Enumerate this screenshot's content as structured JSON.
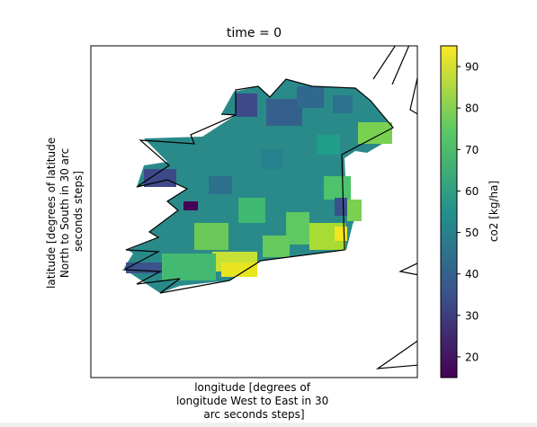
{
  "chart_data": {
    "type": "heatmap",
    "title": "time = 0",
    "xlabel_lines": [
      "longitude [degrees of",
      "longitude West to East in 30",
      "arc seconds steps]"
    ],
    "ylabel_lines": [
      "latitude [degrees of latitude",
      "North to South in 30 arc",
      "seconds steps]"
    ],
    "x_ticks": [],
    "y_ticks": [],
    "colorbar": {
      "label": "co2 [kg/ha]",
      "colormap": "viridis",
      "range": [
        15,
        95
      ],
      "ticks": [
        20,
        30,
        40,
        50,
        60,
        70,
        80,
        90
      ],
      "tick_labels": [
        "20",
        "30",
        "40",
        "50",
        "60",
        "70",
        "80",
        "90"
      ]
    },
    "grid": false,
    "legend": "none"
  },
  "colors": {
    "viridis_stops": [
      "#440154",
      "#3b528b",
      "#21918c",
      "#5ec962",
      "#fde725"
    ],
    "frame": "#000000",
    "background": "#ffffff"
  }
}
